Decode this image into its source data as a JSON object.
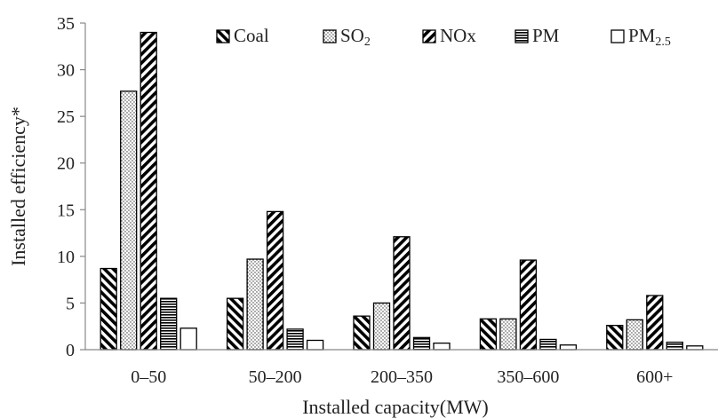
{
  "chart_data": {
    "type": "bar",
    "title": "",
    "xlabel": "Installed capacity(MW)",
    "ylabel": "Installed efficiency*",
    "categories": [
      "0–50",
      "50–200",
      "200–350",
      "350–600",
      "600+"
    ],
    "ylim": [
      0,
      35
    ],
    "yticks": [
      0,
      5,
      10,
      15,
      20,
      25,
      30,
      35
    ],
    "grid": false,
    "legend_position": "top",
    "series": [
      {
        "name": "Coal",
        "pattern": "backslash-hatch",
        "values": [
          8.7,
          5.5,
          3.6,
          3.3,
          2.6
        ]
      },
      {
        "name": "SO",
        "name_subscript": "2",
        "pattern": "dots",
        "values": [
          27.7,
          9.7,
          5.0,
          3.3,
          3.2
        ]
      },
      {
        "name": "NOx",
        "pattern": "forward-hatch",
        "values": [
          34.0,
          14.8,
          12.1,
          9.6,
          5.8
        ]
      },
      {
        "name": "PM",
        "pattern": "horizontal-lines",
        "values": [
          5.5,
          2.2,
          1.3,
          1.1,
          0.8
        ]
      },
      {
        "name": "PM",
        "name_subscript": "2.5",
        "pattern": "solid-white",
        "values": [
          2.3,
          1.0,
          0.7,
          0.5,
          0.4
        ]
      }
    ]
  }
}
